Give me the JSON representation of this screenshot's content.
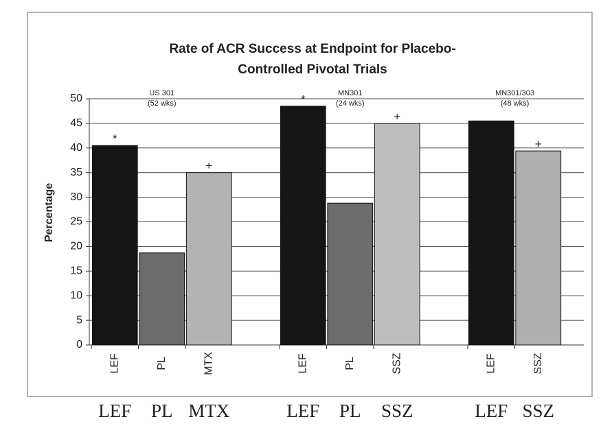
{
  "chart_data": {
    "type": "bar",
    "title": [
      "Rate of ACR Success at Endpoint for Placebo-",
      "Controlled Pivotal Trials"
    ],
    "y_label": "Percentage",
    "categories": [
      "LEF",
      "PL",
      "MTX",
      null,
      "LEF",
      "PL",
      "SSZ",
      null,
      "LEF",
      "SSZ"
    ],
    "values": [
      40.5,
      18.7,
      35,
      null,
      48.5,
      28.8,
      45,
      null,
      45.5,
      39.4
    ],
    "colors": [
      "#151515",
      "#6c6c6c",
      "#b3b3b3",
      null,
      "#151515",
      "#6c6c6c",
      "#bdbdbd",
      null,
      "#151515",
      "#b0b0b0"
    ],
    "markers": [
      "*",
      null,
      "+",
      null,
      "*",
      null,
      "+",
      null,
      null,
      "+"
    ],
    "groups": [
      {
        "name": "US 301",
        "note": "(52 wks)"
      },
      {
        "name": "MN301",
        "note": "(24 wks)"
      },
      {
        "name": "MN301/303",
        "note": "(48 wks)"
      }
    ],
    "footer_labels": [
      "LEF",
      "PL",
      "MTX",
      null,
      "LEF",
      "PL",
      "SSZ",
      null,
      "LEF",
      "SSZ"
    ],
    "ylim": [
      0,
      50
    ],
    "yticks": [
      0,
      5,
      10,
      15,
      20,
      25,
      30,
      35,
      40,
      45,
      50
    ],
    "grid": true
  }
}
